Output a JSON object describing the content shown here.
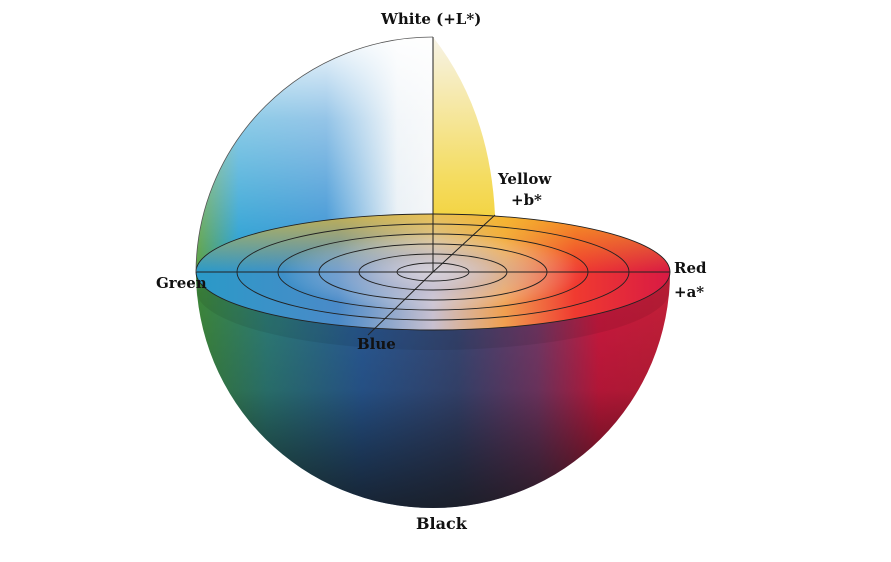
{
  "labels": {
    "white": "White (+L*)",
    "yellow": "Yellow",
    "plus_b": "+b*",
    "red": "Red",
    "plus_a": "+a*",
    "green": "Green",
    "blue": "Blue",
    "black": "Black"
  },
  "colors": {
    "white": "#f4f6f8",
    "yellow": "#f2d21a",
    "red": "#d8183a",
    "green": "#4f9a3a",
    "blue": "#2a6fb8",
    "black": "#1e2228"
  }
}
